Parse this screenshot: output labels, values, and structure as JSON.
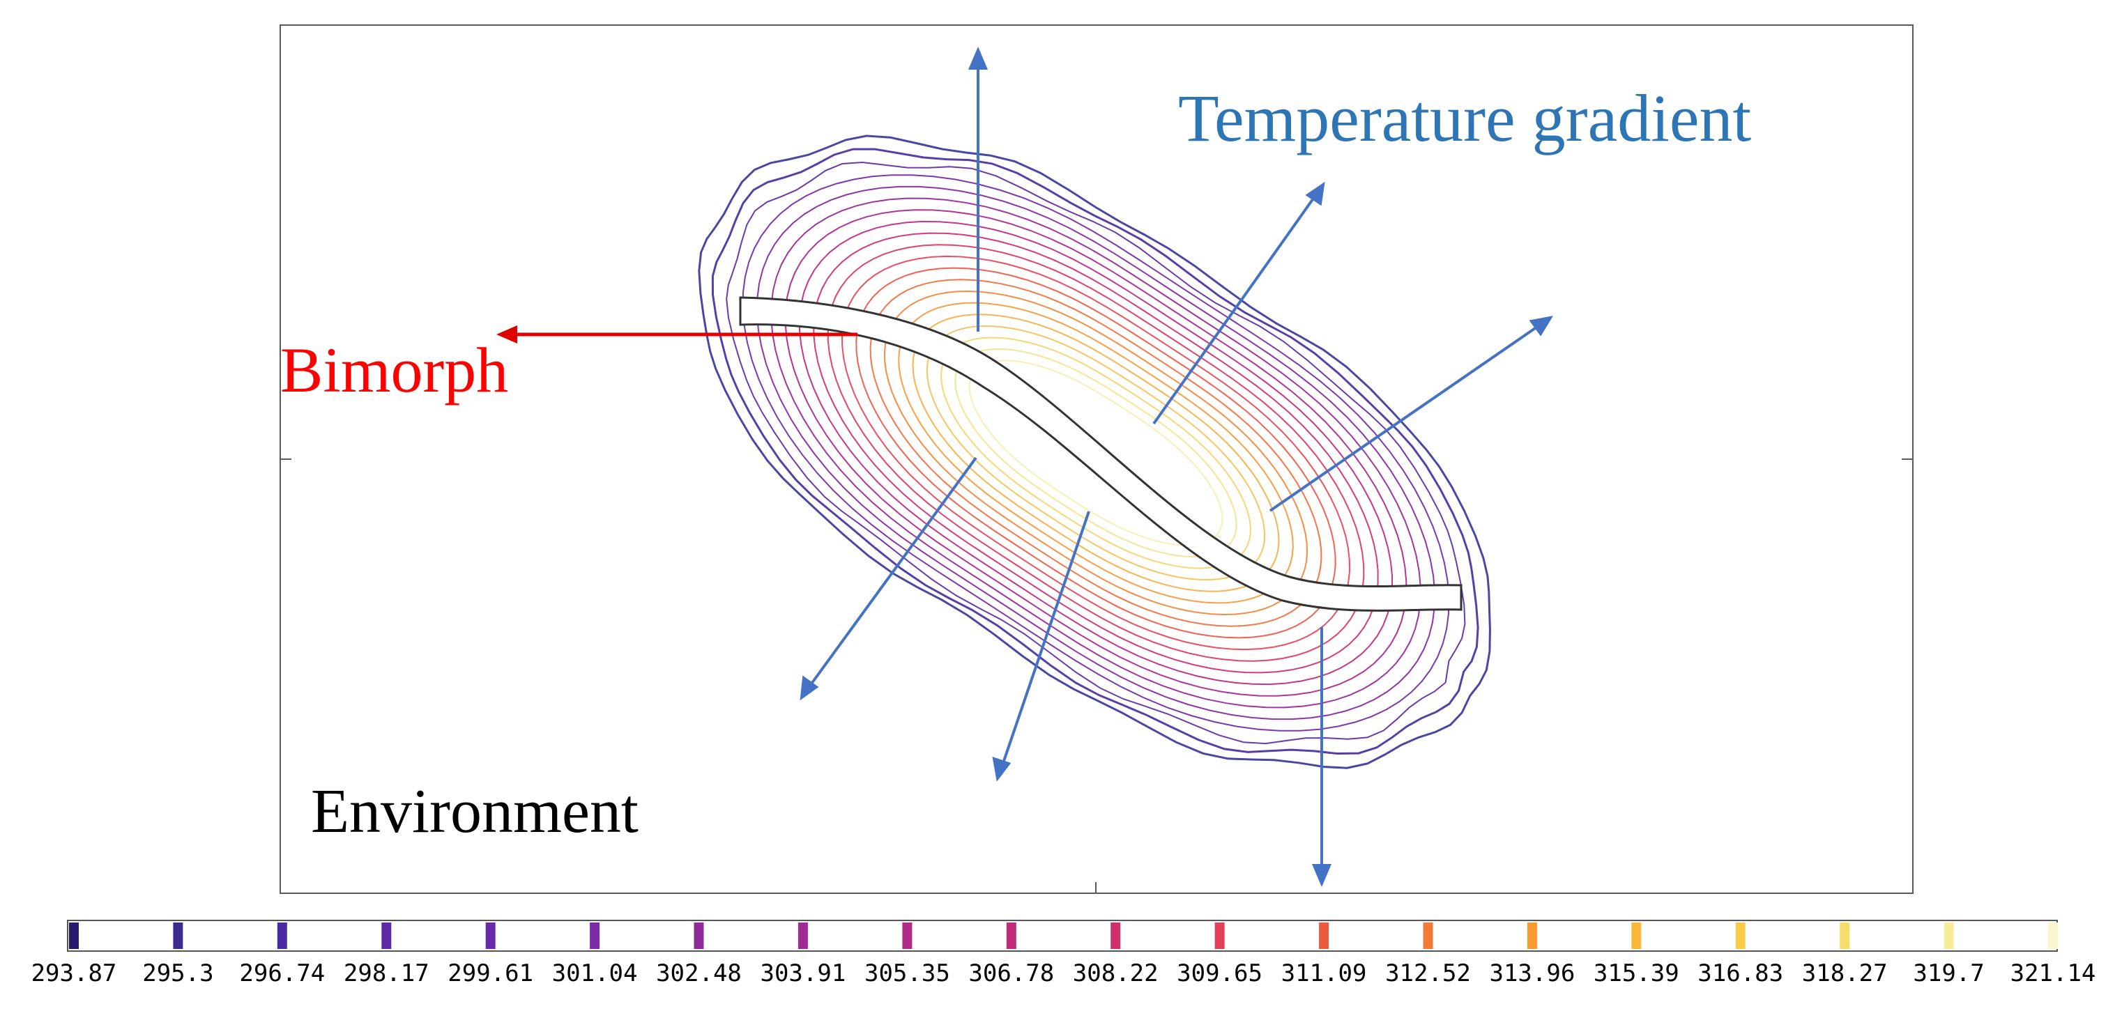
{
  "labels": {
    "temperature_gradient": "Temperature gradient",
    "bimorph": "Bimorph",
    "environment": "Environment"
  },
  "colors": {
    "arrow_blue": "#4472c4",
    "arrow_red": "#e00000",
    "label_blue": "#2e75b6",
    "label_red": "#ff0000",
    "label_black": "#000000"
  },
  "colorbar": {
    "ticks": [
      "293.87",
      "295.3",
      "296.74",
      "298.17",
      "299.61",
      "301.04",
      "302.48",
      "303.91",
      "305.35",
      "306.78",
      "308.22",
      "309.65",
      "311.09",
      "312.52",
      "313.96",
      "315.39",
      "316.83",
      "318.27",
      "319.7",
      "321.14"
    ],
    "marker_colors": [
      "#2a1a6e",
      "#3c2a8c",
      "#4a2aa0",
      "#5a2aa8",
      "#6a2aa8",
      "#7a2aa4",
      "#8e2a9c",
      "#a02a94",
      "#b02a88",
      "#c02a78",
      "#d0306a",
      "#e04058",
      "#ec5a40",
      "#f47838",
      "#f89a30",
      "#f8b838",
      "#f8cc48",
      "#f8dc68",
      "#f8ec98",
      "#fcf6d0"
    ]
  },
  "contour_colors": [
    "#4a47a3",
    "#5640a8",
    "#6a3aac",
    "#7c38ac",
    "#8e36a8",
    "#a034a0",
    "#b23496",
    "#c4368a",
    "#d43a7c",
    "#e2426c",
    "#ec5060",
    "#f26252",
    "#f67648",
    "#f88c44",
    "#f8a046",
    "#f8b450",
    "#f8c660",
    "#f8d676",
    "#f8e494",
    "#faeeb6"
  ]
}
